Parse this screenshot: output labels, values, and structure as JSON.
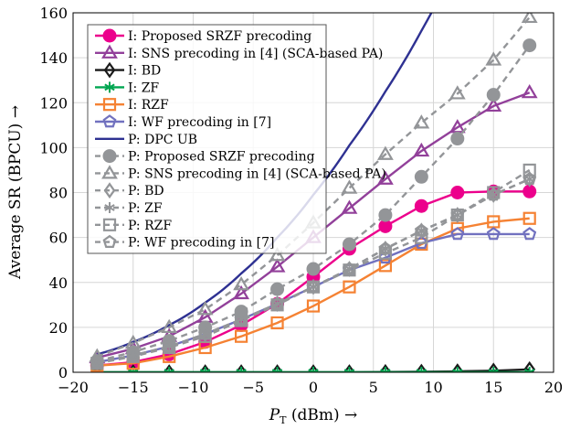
{
  "chart_data": {
    "type": "line",
    "xlabel": "P_T (dBm) →",
    "ylabel": "Average SR (BPCU) →",
    "xlim": [
      -20,
      20
    ],
    "ylim": [
      0,
      160
    ],
    "xticks": [
      -20,
      -15,
      -10,
      -5,
      0,
      5,
      10,
      15,
      20
    ],
    "yticks": [
      0,
      20,
      40,
      60,
      80,
      100,
      120,
      140,
      160
    ],
    "grid": true,
    "legend_position": "top-left",
    "x": [
      -18,
      -15,
      -12,
      -9,
      -6,
      -3,
      0,
      3,
      6,
      9,
      12,
      15,
      18
    ],
    "series": [
      {
        "name": "I: Proposed SRZF precoding",
        "color": "#ec008c",
        "marker": "circle-filled",
        "dash": false,
        "values": [
          3,
          4.5,
          8,
          13.5,
          21,
          30.5,
          42.5,
          55,
          65,
          74,
          80,
          80.5,
          80.5
        ]
      },
      {
        "name": "I: SNS precoding in [4] (SCA-based PA)",
        "color": "#92409a",
        "marker": "triangle",
        "dash": false,
        "values": [
          6.5,
          10.5,
          16,
          24.5,
          35,
          47,
          60,
          73,
          86,
          98.5,
          109,
          118.5,
          124.5
        ]
      },
      {
        "name": "I: BD",
        "color": "#1a1a1a",
        "marker": "diamond",
        "dash": false,
        "values": [
          0,
          0,
          0,
          0,
          0,
          0,
          0,
          0,
          0.1,
          0.2,
          0.4,
          0.7,
          1.3
        ]
      },
      {
        "name": "I: ZF",
        "color": "#00a651",
        "marker": "asterisk",
        "dash": false,
        "values": [
          0,
          0,
          0,
          0,
          0,
          0,
          0,
          0,
          0,
          0,
          0,
          0,
          0
        ]
      },
      {
        "name": "I: RZF",
        "color": "#f58233",
        "marker": "square",
        "dash": false,
        "values": [
          3,
          4,
          7,
          11,
          16,
          22,
          29.5,
          38,
          47.5,
          57,
          64,
          67,
          68.5
        ]
      },
      {
        "name": "I: WF precoding in [7]",
        "color": "#7171bf",
        "marker": "pentagon",
        "dash": false,
        "values": [
          4.5,
          7.5,
          11.5,
          17,
          23.5,
          30.5,
          38,
          45.5,
          51,
          57.5,
          61.5,
          61.5,
          61.5
        ]
      },
      {
        "name": "P: DPC UB",
        "color": "#2e3192",
        "marker": "none",
        "dash": false,
        "values": [
          8,
          13.5,
          21,
          31,
          44,
          60,
          79,
          101,
          125,
          152,
          183,
          null,
          null
        ]
      },
      {
        "name": "P: Proposed SRZF precoding",
        "color": "#939598",
        "marker": "circle-filled",
        "dash": true,
        "values": [
          5,
          9,
          14,
          20,
          27,
          37,
          46,
          57,
          70,
          87,
          104,
          123.5,
          145.5
        ]
      },
      {
        "name": "P: SNS precoding in [4] (SCA-based PA)",
        "color": "#939598",
        "marker": "triangle",
        "dash": true,
        "values": [
          7,
          13,
          20,
          28,
          39,
          52,
          66.5,
          82,
          97,
          111,
          124,
          139,
          158
        ]
      },
      {
        "name": "P: BD",
        "color": "#939598",
        "marker": "diamond",
        "dash": true,
        "values": [
          4.5,
          7.5,
          11.5,
          17,
          23.5,
          30.5,
          38,
          46,
          55,
          63,
          70,
          79,
          86
        ]
      },
      {
        "name": "P: ZF",
        "color": "#939598",
        "marker": "asterisk",
        "dash": true,
        "values": [
          4.5,
          7.5,
          11.5,
          17,
          23.5,
          30.5,
          38,
          46,
          55,
          63,
          70,
          79,
          86
        ]
      },
      {
        "name": "P: RZF",
        "color": "#939598",
        "marker": "square",
        "dash": true,
        "values": [
          4,
          7,
          11,
          16,
          23,
          30,
          38,
          45.5,
          53,
          60,
          70,
          80,
          90
        ]
      },
      {
        "name": "P: WF precoding in [7]",
        "color": "#939598",
        "marker": "pentagon",
        "dash": true,
        "values": [
          4.5,
          7.5,
          11.5,
          17,
          23.5,
          30.5,
          38,
          46,
          55,
          63,
          70,
          79,
          86
        ]
      }
    ]
  }
}
